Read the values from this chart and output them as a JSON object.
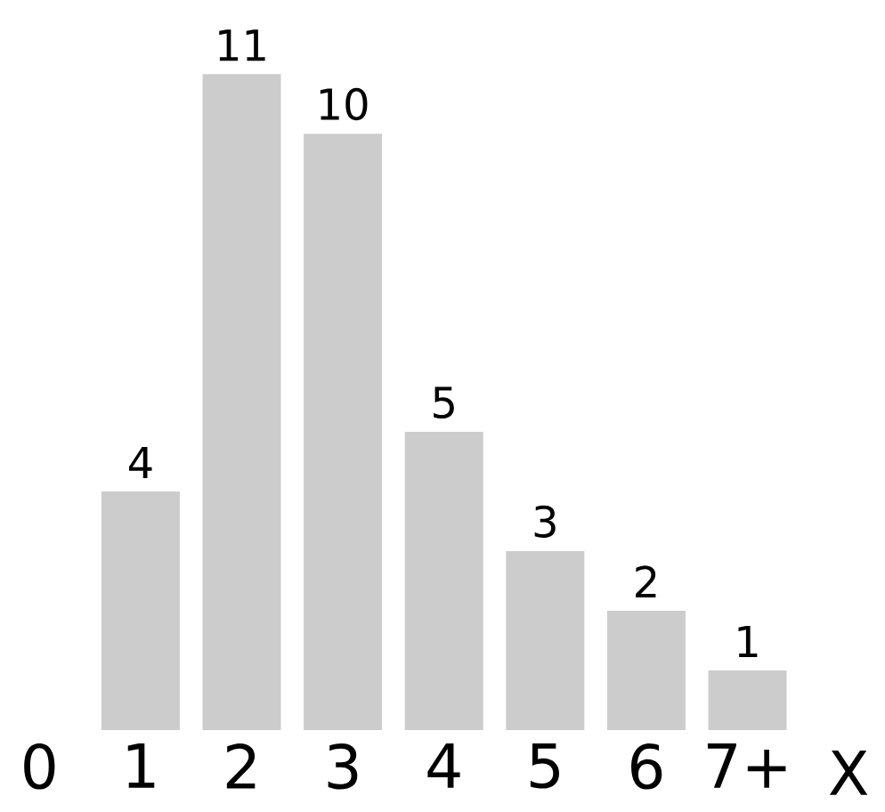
{
  "chart_data": {
    "type": "bar",
    "categories": [
      "0",
      "1",
      "2",
      "3",
      "4",
      "5",
      "6",
      "7+"
    ],
    "values": [
      0,
      4,
      11,
      10,
      5,
      3,
      2,
      1
    ],
    "value_labels": [
      null,
      "4",
      "11",
      "10",
      "5",
      "3",
      "2",
      "1"
    ],
    "color": "#cccccc",
    "xlabel": "X"
  }
}
